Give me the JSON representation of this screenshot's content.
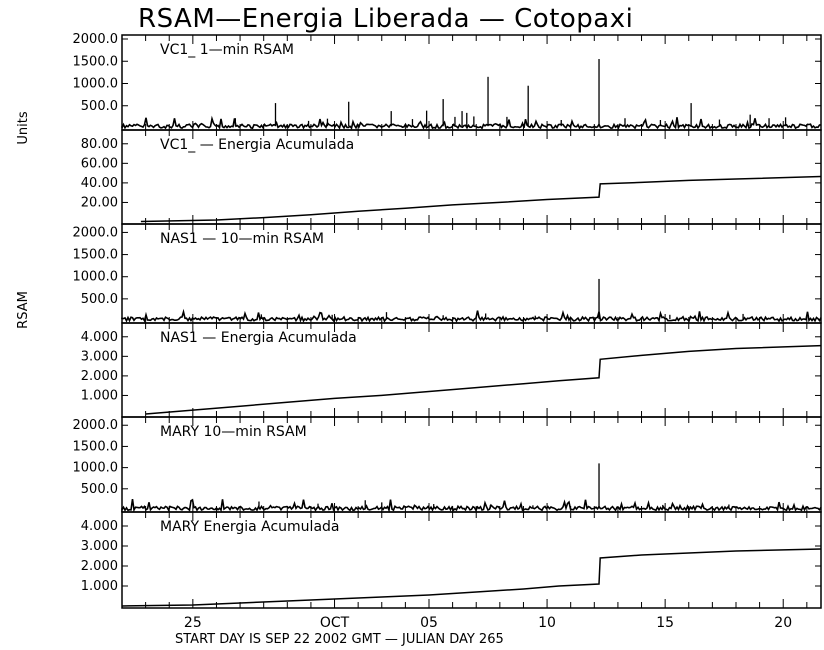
{
  "chart_data": {
    "type": "line",
    "title": "RSAM—Energia Liberada — Cotopaxi",
    "ylabel_top": "Units",
    "ylabel_bottom": "RSAM",
    "xlabel": "START DAY IS SEP 22 2002 GMT    — JULIAN DAY 265",
    "x_axis": {
      "units": "day of year 2002",
      "range": [
        265,
        294.6
      ],
      "tick_labels": [
        {
          "label": "25",
          "day": 268
        },
        {
          "label": "OCT",
          "day": 274
        },
        {
          "label": "05",
          "day": 278
        },
        {
          "label": "10",
          "day": 283
        },
        {
          "label": "15",
          "day": 288
        },
        {
          "label": "20",
          "day": 293
        }
      ]
    },
    "panels": [
      {
        "name": "VC1_ 1-min RSAM",
        "title": "VC1_  1—min RSAM",
        "kind": "spikes",
        "ylim": [
          0,
          2000
        ],
        "yticks": [
          "2000.0",
          "1500.0",
          "1000.0",
          "500.0"
        ],
        "baseline": 40,
        "spikes": [
          {
            "day": 269.8,
            "value": 220
          },
          {
            "day": 271.5,
            "value": 560
          },
          {
            "day": 272.9,
            "value": 160
          },
          {
            "day": 273.7,
            "value": 210
          },
          {
            "day": 274.6,
            "value": 590
          },
          {
            "day": 276.4,
            "value": 380
          },
          {
            "day": 277.3,
            "value": 200
          },
          {
            "day": 277.9,
            "value": 390
          },
          {
            "day": 278.6,
            "value": 650
          },
          {
            "day": 279.1,
            "value": 250
          },
          {
            "day": 279.4,
            "value": 380
          },
          {
            "day": 279.6,
            "value": 340
          },
          {
            "day": 279.9,
            "value": 260
          },
          {
            "day": 280.5,
            "value": 1150
          },
          {
            "day": 281.3,
            "value": 250
          },
          {
            "day": 282.2,
            "value": 950
          },
          {
            "day": 283.6,
            "value": 180
          },
          {
            "day": 285.2,
            "value": 1550
          },
          {
            "day": 286.3,
            "value": 220
          },
          {
            "day": 287.8,
            "value": 180
          },
          {
            "day": 289.1,
            "value": 560
          },
          {
            "day": 290.3,
            "value": 190
          },
          {
            "day": 291.6,
            "value": 300
          },
          {
            "day": 292.4,
            "value": 220
          },
          {
            "day": 293.1,
            "value": 240
          }
        ]
      },
      {
        "name": "VC1_ - Energia Acumulada",
        "title": "VC1_  — Energia Acumulada",
        "kind": "cumulative",
        "ylim": [
          0,
          90
        ],
        "yticks": [
          "80.00",
          "60.00",
          "40.00",
          "20.00"
        ],
        "x": [
          265.8,
          269.0,
          271.0,
          273.0,
          275.0,
          277.0,
          279.0,
          281.0,
          283.0,
          285.2,
          285.25,
          287.0,
          289.0,
          291.0,
          294.6
        ],
        "y": [
          0.5,
          2.0,
          4.5,
          7.5,
          11.0,
          14.0,
          17.5,
          20.0,
          23.0,
          25.5,
          39.0,
          40.5,
          42.5,
          44.0,
          46.5
        ]
      },
      {
        "name": "NAS1 - 10-min RSAM",
        "title": "NAS1  — 10—min RSAM",
        "kind": "spikes",
        "ylim": [
          0,
          2100
        ],
        "yticks": [
          "2000.0",
          "1500.0",
          "1000.0",
          "500.0"
        ],
        "baseline": 45,
        "spikes": [
          {
            "day": 270.9,
            "value": 150
          },
          {
            "day": 273.9,
            "value": 140
          },
          {
            "day": 276.2,
            "value": 200
          },
          {
            "day": 278.6,
            "value": 130
          },
          {
            "day": 280.4,
            "value": 170
          },
          {
            "day": 282.5,
            "value": 120
          },
          {
            "day": 285.2,
            "value": 950
          },
          {
            "day": 288.2,
            "value": 140
          },
          {
            "day": 291.3,
            "value": 160
          }
        ]
      },
      {
        "name": "NAS1 - Energia Acumulada",
        "title": "NAS1  — Energia Acumulada",
        "kind": "cumulative",
        "ylim": [
          0,
          4.5
        ],
        "yticks": [
          "4.000",
          "3.000",
          "2.000",
          "1.000"
        ],
        "x": [
          266.0,
          268.0,
          270.0,
          272.0,
          274.0,
          276.0,
          278.0,
          280.0,
          282.0,
          283.5,
          285.2,
          285.25,
          287.0,
          289.0,
          291.0,
          294.6
        ],
        "y": [
          0.05,
          0.25,
          0.45,
          0.65,
          0.85,
          1.0,
          1.2,
          1.4,
          1.6,
          1.75,
          1.9,
          2.85,
          3.05,
          3.25,
          3.4,
          3.55
        ]
      },
      {
        "name": "MARY 10-min RSAM",
        "title": "MARY 10—min RSAM",
        "kind": "spikes",
        "ylim": [
          0,
          2100
        ],
        "yticks": [
          "2000.0",
          "1500.0",
          "1000.0",
          "500.0"
        ],
        "baseline": 40,
        "spikes": [
          {
            "day": 270.8,
            "value": 200
          },
          {
            "day": 273.3,
            "value": 150
          },
          {
            "day": 275.3,
            "value": 230
          },
          {
            "day": 276.0,
            "value": 180
          },
          {
            "day": 278.2,
            "value": 140
          },
          {
            "day": 280.6,
            "value": 120
          },
          {
            "day": 282.4,
            "value": 110
          },
          {
            "day": 285.2,
            "value": 1100
          },
          {
            "day": 287.9,
            "value": 120
          },
          {
            "day": 290.7,
            "value": 130
          }
        ]
      },
      {
        "name": "MARY Energia Acumulada",
        "title": "MARY Energia Acumulada",
        "kind": "cumulative",
        "ylim": [
          0,
          4.5
        ],
        "yticks": [
          "4.000",
          "3.000",
          "2.000",
          "1.000"
        ],
        "x": [
          265.0,
          268.0,
          270.0,
          272.0,
          274.0,
          276.0,
          278.0,
          280.0,
          282.0,
          283.5,
          285.2,
          285.25,
          287.0,
          289.0,
          291.0,
          294.6
        ],
        "y": [
          0.0,
          0.05,
          0.15,
          0.25,
          0.35,
          0.45,
          0.55,
          0.7,
          0.85,
          1.0,
          1.1,
          2.4,
          2.55,
          2.65,
          2.75,
          2.85
        ]
      }
    ]
  }
}
